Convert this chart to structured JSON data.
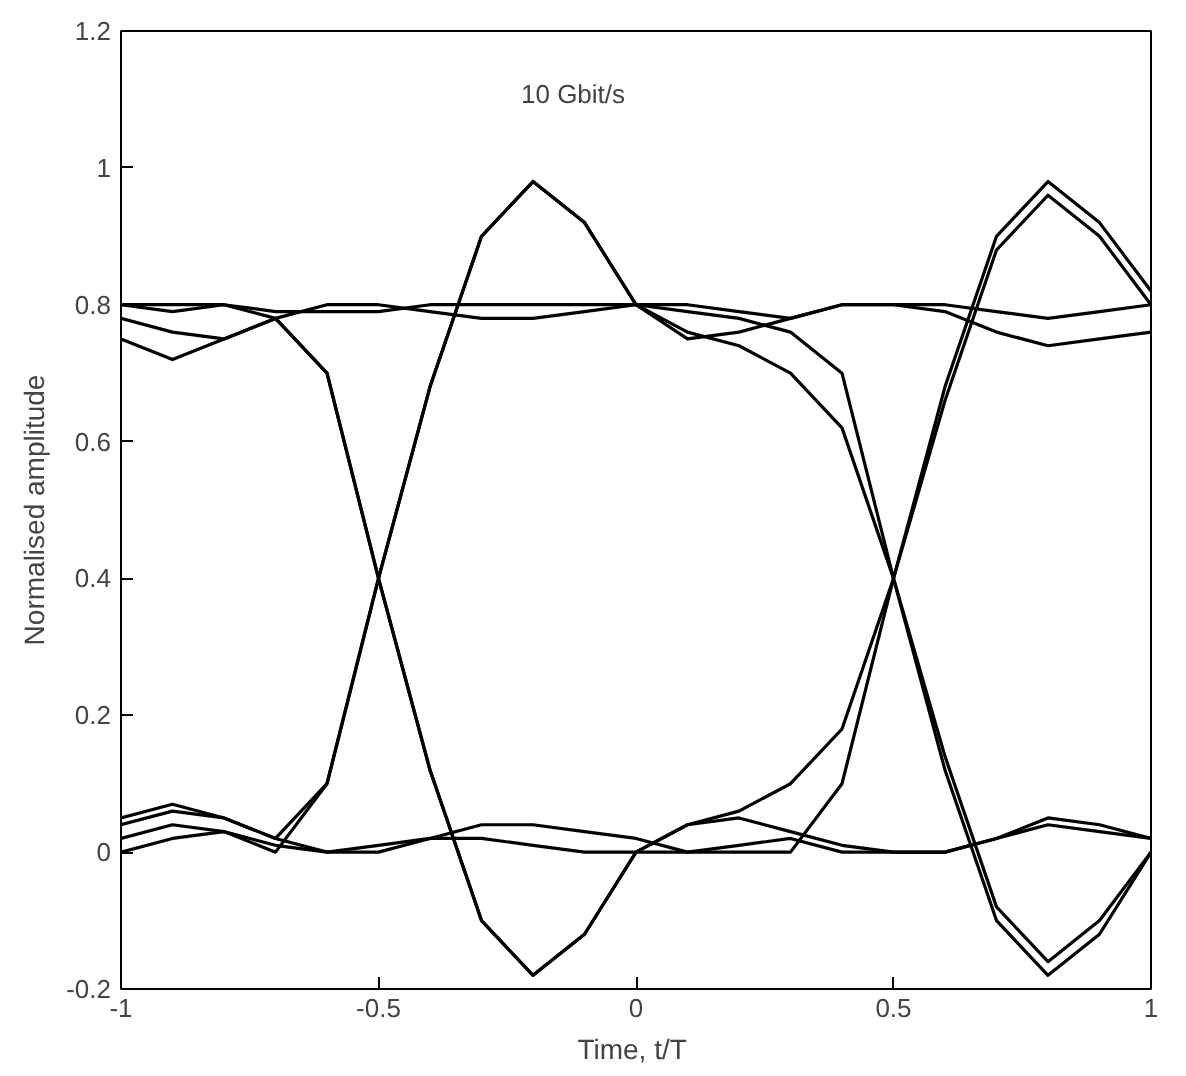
{
  "chart_data": {
    "type": "line",
    "xlabel": "Time,  t/T",
    "ylabel": "Normalised amplitude",
    "annotations": [
      "10 Gbit/s"
    ],
    "x": [
      -1.0,
      -0.9,
      -0.8,
      -0.7,
      -0.6,
      -0.5,
      -0.4,
      -0.3,
      -0.2,
      -0.1,
      0.0,
      0.1,
      0.2,
      0.3,
      0.4,
      0.5,
      0.6,
      0.7,
      0.8,
      0.9,
      1.0
    ],
    "series": [
      {
        "color": "#000000",
        "values": [
          0.05,
          0.07,
          0.05,
          0.02,
          0.1,
          0.4,
          0.68,
          0.9,
          0.98,
          0.92,
          0.8,
          0.76,
          0.74,
          0.7,
          0.62,
          0.4,
          0.14,
          -0.08,
          -0.16,
          -0.1,
          0.0
        ]
      },
      {
        "color": "#000000",
        "values": [
          0.75,
          0.72,
          0.75,
          0.78,
          0.7,
          0.4,
          0.12,
          -0.1,
          -0.18,
          -0.12,
          0.0,
          0.04,
          0.06,
          0.1,
          0.18,
          0.4,
          0.66,
          0.88,
          0.96,
          0.9,
          0.8
        ]
      },
      {
        "color": "#000000",
        "values": [
          0.02,
          0.04,
          0.03,
          0.0,
          0.1,
          0.4,
          0.68,
          0.9,
          0.98,
          0.92,
          0.8,
          0.75,
          0.76,
          0.78,
          0.8,
          0.8,
          0.8,
          0.79,
          0.78,
          0.79,
          0.8
        ]
      },
      {
        "color": "#000000",
        "values": [
          0.8,
          0.8,
          0.8,
          0.79,
          0.79,
          0.79,
          0.8,
          0.8,
          0.8,
          0.8,
          0.8,
          0.79,
          0.78,
          0.76,
          0.7,
          0.4,
          0.12,
          -0.1,
          -0.18,
          -0.12,
          0.0
        ]
      },
      {
        "color": "#000000",
        "values": [
          0.0,
          0.02,
          0.03,
          0.01,
          0.0,
          0.01,
          0.02,
          0.02,
          0.01,
          0.0,
          0.0,
          0.0,
          0.01,
          0.02,
          0.0,
          0.0,
          0.0,
          0.02,
          0.04,
          0.03,
          0.02
        ]
      },
      {
        "color": "#000000",
        "values": [
          0.78,
          0.76,
          0.75,
          0.78,
          0.8,
          0.8,
          0.79,
          0.78,
          0.78,
          0.79,
          0.8,
          0.8,
          0.79,
          0.78,
          0.8,
          0.8,
          0.79,
          0.76,
          0.74,
          0.75,
          0.76
        ]
      },
      {
        "color": "#000000",
        "values": [
          0.04,
          0.06,
          0.05,
          0.02,
          0.0,
          0.0,
          0.02,
          0.04,
          0.04,
          0.03,
          0.02,
          0.0,
          0.0,
          0.0,
          0.1,
          0.4,
          0.68,
          0.9,
          0.98,
          0.92,
          0.82
        ]
      },
      {
        "color": "#000000",
        "values": [
          0.8,
          0.79,
          0.8,
          0.78,
          0.7,
          0.4,
          0.12,
          -0.1,
          -0.18,
          -0.12,
          0.0,
          0.04,
          0.05,
          0.03,
          0.01,
          0.0,
          0.0,
          0.02,
          0.05,
          0.04,
          0.02
        ]
      }
    ],
    "xlim": [
      -1,
      1
    ],
    "xticks": [
      -1,
      -0.5,
      0,
      0.5,
      1
    ],
    "ylim": [
      -0.2,
      1.2
    ],
    "yticks": [
      -0.2,
      0,
      0.2,
      0.4,
      0.6,
      0.8,
      1,
      1.2
    ],
    "grid": false,
    "line_style": "solid"
  }
}
